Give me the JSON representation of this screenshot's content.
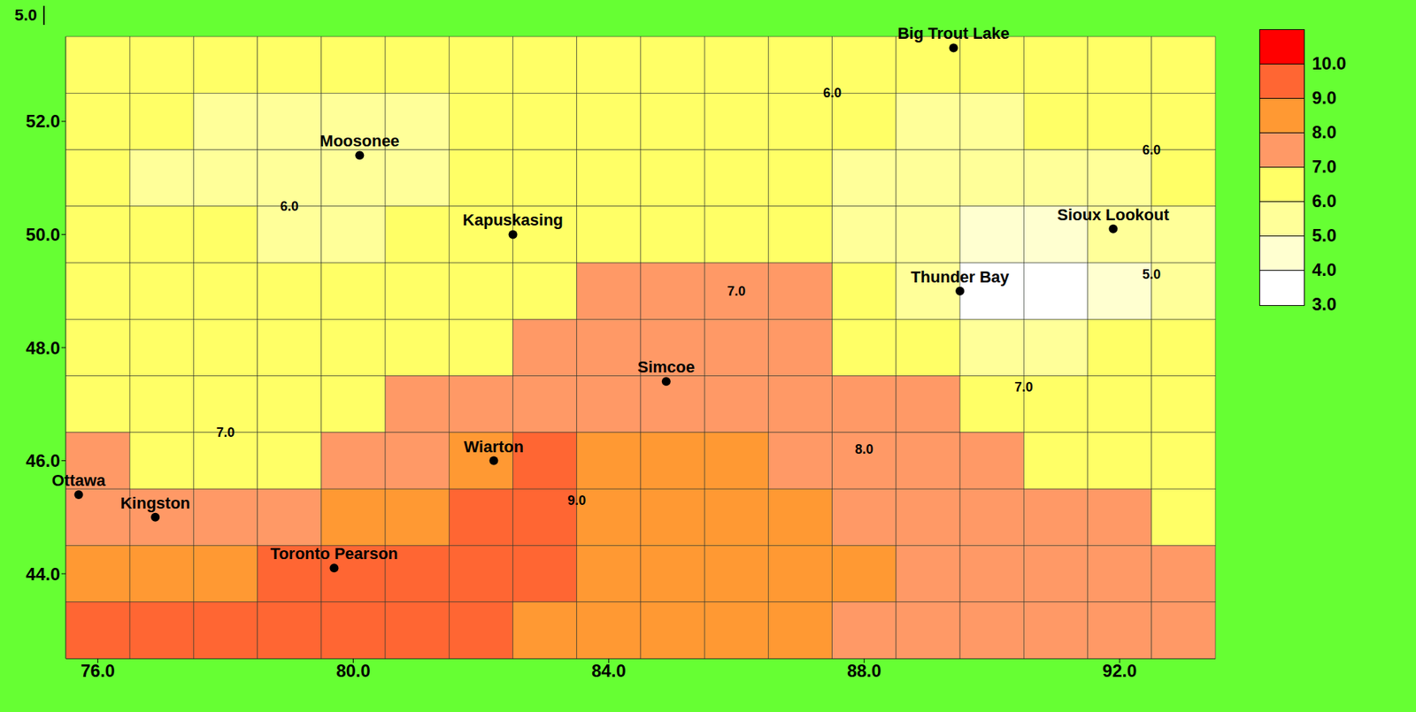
{
  "chart_data": {
    "type": "heatmap",
    "grid": false,
    "tick_labels": true,
    "marker": "circle",
    "xlim": [
      75.5,
      93.5
    ],
    "ylim": [
      42.5,
      53.5
    ],
    "xticks": [
      {
        "value": 76,
        "label": "76.0"
      },
      {
        "value": 80,
        "label": "80.0"
      },
      {
        "value": 84,
        "label": "84.0"
      },
      {
        "value": 88,
        "label": "88.0"
      },
      {
        "value": 92,
        "label": "92.0"
      }
    ],
    "yticks": [
      {
        "value": 44,
        "label": "44.0"
      },
      {
        "value": 46,
        "label": "46.0"
      },
      {
        "value": 48,
        "label": "48.0"
      },
      {
        "value": 50,
        "label": "50.0"
      },
      {
        "value": 52,
        "label": "52.0"
      }
    ],
    "z_ticks": [
      {
        "value": 5,
        "label": "5.0"
      }
    ],
    "x": [
      76,
      77,
      78,
      79,
      80,
      81,
      82,
      83,
      84,
      85,
      86,
      87,
      88,
      89,
      90,
      91,
      92,
      93
    ],
    "y": [
      53,
      52,
      51,
      50,
      49,
      48,
      47,
      46,
      45,
      44,
      43
    ],
    "cells": [
      [
        6.3,
        6.2,
        6.1,
        6.0,
        6.0,
        6.1,
        6.2,
        6.3,
        6.4,
        6.5,
        6.5,
        6.3,
        6.0,
        6.0,
        6.1,
        6.3,
        6.4,
        6.5
      ],
      [
        6.2,
        6.0,
        5.8,
        5.7,
        5.7,
        5.9,
        6.1,
        6.3,
        6.4,
        6.5,
        6.4,
        6.2,
        6.0,
        5.8,
        5.9,
        6.0,
        6.2,
        6.4
      ],
      [
        6.2,
        5.9,
        5.7,
        5.5,
        5.5,
        5.8,
        6.0,
        6.3,
        6.5,
        6.5,
        6.4,
        6.2,
        5.9,
        5.5,
        5.2,
        5.3,
        5.6,
        6.0
      ],
      [
        6.4,
        6.2,
        6.0,
        5.9,
        5.9,
        6.0,
        6.1,
        6.4,
        6.7,
        6.8,
        6.6,
        6.3,
        5.8,
        5.0,
        4.3,
        4.4,
        5.0,
        5.8
      ],
      [
        6.5,
        6.5,
        6.4,
        6.3,
        6.3,
        6.4,
        6.5,
        6.8,
        7.3,
        7.5,
        7.3,
        7.0,
        6.4,
        5.2,
        3.5,
        3.8,
        4.8,
        5.9
      ],
      [
        6.6,
        6.7,
        6.6,
        6.5,
        6.5,
        6.6,
        6.9,
        7.4,
        7.7,
        7.6,
        7.5,
        7.3,
        6.9,
        6.2,
        5.5,
        5.6,
        6.0,
        6.5
      ],
      [
        6.8,
        6.8,
        6.7,
        6.7,
        6.8,
        7.0,
        7.4,
        7.7,
        7.8,
        7.9,
        7.8,
        7.6,
        7.3,
        7.0,
        6.7,
        6.6,
        6.6,
        6.7
      ],
      [
        7.0,
        6.9,
        6.8,
        6.9,
        7.3,
        7.8,
        8.6,
        9.2,
        8.5,
        8.1,
        8.0,
        7.9,
        7.6,
        7.3,
        7.0,
        6.9,
        6.8,
        6.8
      ],
      [
        7.3,
        7.8,
        7.6,
        7.4,
        8.0,
        8.7,
        9.3,
        9.4,
        8.9,
        8.5,
        8.2,
        8.0,
        7.8,
        7.5,
        7.3,
        7.1,
        7.0,
        6.9
      ],
      [
        8.4,
        8.6,
        8.8,
        9.0,
        9.3,
        9.4,
        9.3,
        9.1,
        8.8,
        8.6,
        8.4,
        8.2,
        8.0,
        7.8,
        7.6,
        7.4,
        7.2,
        7.1
      ],
      [
        9.0,
        9.2,
        9.3,
        9.4,
        9.4,
        9.3,
        9.1,
        8.9,
        8.7,
        8.5,
        8.3,
        8.1,
        7.9,
        7.7,
        7.5,
        7.3,
        7.2,
        7.1
      ]
    ],
    "colorbar": {
      "range": [
        3,
        11
      ],
      "ticks": [
        {
          "value": 3,
          "label": "3.0"
        },
        {
          "value": 4,
          "label": "4.0"
        },
        {
          "value": 5,
          "label": "5.0"
        },
        {
          "value": 6,
          "label": "6.0"
        },
        {
          "value": 7,
          "label": "7.0"
        },
        {
          "value": 8,
          "label": "8.0"
        },
        {
          "value": 9,
          "label": "9.0"
        },
        {
          "value": 10,
          "label": "10.0"
        }
      ],
      "colors": [
        "#ffffff",
        "#ffffd0",
        "#ffff99",
        "#ffff66",
        "#ff9966",
        "#ff9933",
        "#ff6633",
        "#ff0000"
      ]
    },
    "stations": [
      {
        "name": "Big Trout Lake",
        "x": 89.4,
        "y": 53.3
      },
      {
        "name": "Sioux Lookout",
        "x": 91.9,
        "y": 50.1
      },
      {
        "name": "Thunder Bay",
        "x": 89.5,
        "y": 49.0
      },
      {
        "name": "Moosonee",
        "x": 80.1,
        "y": 51.4
      },
      {
        "name": "Kapuskasing",
        "x": 82.5,
        "y": 50.0
      },
      {
        "name": "Simcoe",
        "x": 84.9,
        "y": 47.4
      },
      {
        "name": "Wiarton",
        "x": 82.2,
        "y": 46.0
      },
      {
        "name": "Toronto Pearson",
        "x": 79.7,
        "y": 44.1
      },
      {
        "name": "Kingston",
        "x": 76.9,
        "y": 45.0
      },
      {
        "name": "Ottawa",
        "x": 75.7,
        "y": 45.4
      }
    ],
    "station_color": "#000000",
    "annotations": [
      {
        "text": "6.0",
        "x": 79,
        "y": 50.5
      },
      {
        "text": "6.0",
        "x": 87.5,
        "y": 52.5
      },
      {
        "text": "6.0",
        "x": 92.5,
        "y": 51.5
      },
      {
        "text": "5.0",
        "x": 92.5,
        "y": 49.3
      },
      {
        "text": "7.0",
        "x": 86,
        "y": 49
      },
      {
        "text": "7.0",
        "x": 90.5,
        "y": 47.3
      },
      {
        "text": "8.0",
        "x": 88,
        "y": 46.2
      },
      {
        "text": "9.0",
        "x": 83.5,
        "y": 45.3
      },
      {
        "text": "7.0",
        "x": 78,
        "y": 46.5
      }
    ]
  }
}
